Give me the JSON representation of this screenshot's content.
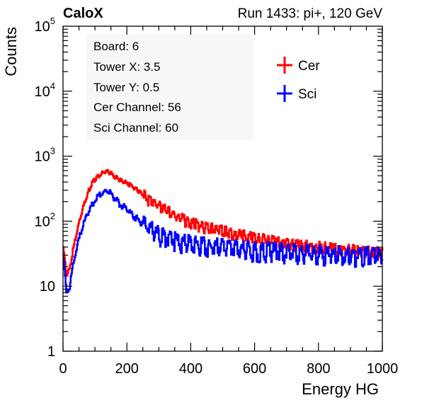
{
  "header": {
    "left": "CaloX",
    "right": "Run 1433: pi+, 120 GeV"
  },
  "info_box": {
    "lines": [
      "Board: 6",
      "Tower X: 3.5",
      "Tower Y: 0.5",
      "Cer Channel: 56",
      "Sci Channel: 60"
    ]
  },
  "chart_data": {
    "type": "line",
    "xlabel": "Energy HG",
    "ylabel": "Counts",
    "xlim": [
      0,
      1000
    ],
    "ylim": [
      1,
      100000
    ],
    "yscale": "log",
    "x_ticks": [
      "0",
      "200",
      "400",
      "600",
      "800",
      "1000"
    ],
    "y_ticks": [
      {
        "value": 1,
        "base": "1",
        "exp": ""
      },
      {
        "value": 10,
        "base": "10",
        "exp": ""
      },
      {
        "value": 100,
        "base": "10",
        "exp": "2"
      },
      {
        "value": 1000,
        "base": "10",
        "exp": "3"
      },
      {
        "value": 10000,
        "base": "10",
        "exp": "4"
      },
      {
        "value": 100000,
        "base": "10",
        "exp": "5"
      }
    ],
    "legend_placement": "top-right",
    "series": [
      {
        "name": "Cer",
        "color": "#ff0000",
        "x": [
          0,
          10,
          20,
          30,
          40,
          50,
          60,
          70,
          80,
          90,
          100,
          110,
          120,
          130,
          140,
          150,
          160,
          170,
          180,
          190,
          200,
          220,
          240,
          260,
          280,
          300,
          330,
          360,
          400,
          450,
          500,
          550,
          600,
          650,
          700,
          750,
          800,
          850,
          900,
          950,
          1000
        ],
        "values": [
          40,
          15,
          18,
          35,
          60,
          100,
          150,
          220,
          300,
          380,
          450,
          500,
          540,
          570,
          580,
          540,
          490,
          460,
          420,
          400,
          380,
          330,
          280,
          230,
          200,
          170,
          140,
          115,
          95,
          80,
          70,
          62,
          55,
          50,
          45,
          42,
          40,
          38,
          36,
          34,
          33
        ]
      },
      {
        "name": "Sci",
        "color": "#0000ff",
        "x": [
          0,
          10,
          20,
          30,
          40,
          50,
          60,
          70,
          80,
          90,
          100,
          110,
          120,
          130,
          140,
          150,
          160,
          170,
          180,
          190,
          200,
          220,
          240,
          260,
          280,
          300,
          330,
          360,
          400,
          450,
          500,
          550,
          600,
          650,
          700,
          750,
          800,
          850,
          900,
          950,
          1000
        ],
        "values": [
          30,
          8,
          10,
          20,
          35,
          55,
          80,
          110,
          150,
          180,
          210,
          240,
          260,
          280,
          290,
          260,
          230,
          200,
          180,
          165,
          150,
          120,
          100,
          85,
          72,
          62,
          55,
          50,
          45,
          42,
          40,
          38,
          36,
          35,
          34,
          33,
          32,
          31,
          30,
          30,
          30
        ]
      }
    ]
  }
}
